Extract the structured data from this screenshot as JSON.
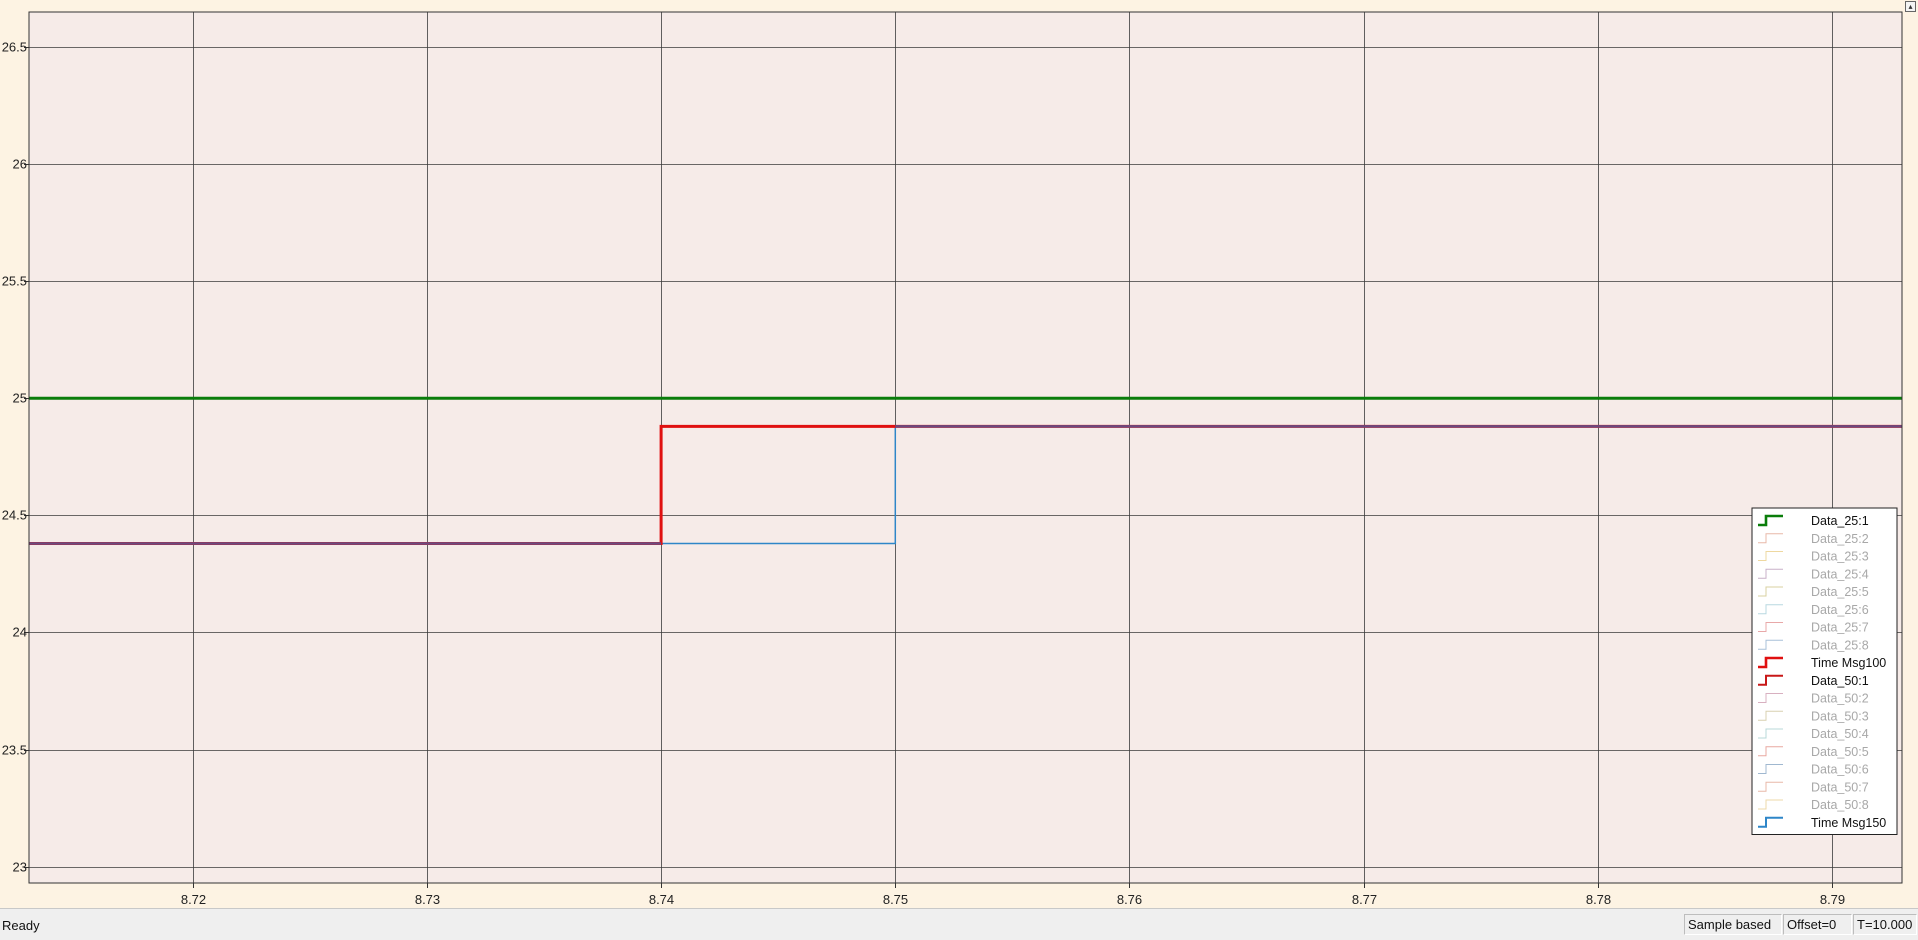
{
  "statusbar": {
    "status": "Ready",
    "mode": "Sample based",
    "offset": "Offset=0",
    "time": "T=10.000"
  },
  "chart_data": {
    "type": "line",
    "xlim": [
      8.713,
      8.793
    ],
    "ylim": [
      22.93,
      26.65
    ],
    "x_ticks": [
      8.72,
      8.73,
      8.74,
      8.75,
      8.76,
      8.77,
      8.78,
      8.79
    ],
    "x_tick_labels": [
      "8.72",
      "8.73",
      "8.74",
      "8.75",
      "8.76",
      "8.77",
      "8.78",
      "8.79"
    ],
    "y_ticks": [
      23,
      23.5,
      24,
      24.5,
      25,
      25.5,
      26,
      26.5
    ],
    "y_tick_labels": [
      "23",
      "23.5",
      "24",
      "24.5",
      "25",
      "25.5",
      "26",
      "26.5"
    ],
    "grid": true,
    "legend_position": "right",
    "plot_background": "#f6ebe8",
    "series": [
      {
        "name": "Data_25:1",
        "color": "#0a7d0a",
        "width": 3,
        "active": true,
        "visible": true,
        "x": [
          8.713,
          8.793
        ],
        "y": [
          25,
          25
        ]
      },
      {
        "name": "Data_25:2",
        "color": "#e8b8a8",
        "active": false
      },
      {
        "name": "Data_25:3",
        "color": "#eed8a0",
        "active": false
      },
      {
        "name": "Data_25:4",
        "color": "#c8b0c8",
        "active": false
      },
      {
        "name": "Data_25:5",
        "color": "#d8d0a0",
        "active": false
      },
      {
        "name": "Data_25:6",
        "color": "#b8d8e0",
        "active": false
      },
      {
        "name": "Data_25:7",
        "color": "#e8a8a8",
        "active": false
      },
      {
        "name": "Data_25:8",
        "color": "#a8c0d8",
        "active": false
      },
      {
        "name": "Time Msg100",
        "color": "#e01010",
        "width": 3,
        "active": true,
        "visible": true,
        "x": [
          8.713,
          8.74,
          8.74,
          8.75,
          8.75,
          8.793
        ],
        "y": [
          24.38,
          24.38,
          24.88,
          24.88,
          24.88,
          24.88
        ]
      },
      {
        "name": "Data_50:1",
        "color": "#c81818",
        "active": true,
        "visible": false
      },
      {
        "name": "Data_50:2",
        "color": "#d8b0c0",
        "active": false
      },
      {
        "name": "Data_50:3",
        "color": "#d8d0b0",
        "active": false
      },
      {
        "name": "Data_50:4",
        "color": "#b8d8d8",
        "active": false
      },
      {
        "name": "Data_50:5",
        "color": "#e8a8a0",
        "active": false
      },
      {
        "name": "Data_50:6",
        "color": "#a0b8d0",
        "active": false
      },
      {
        "name": "Data_50:7",
        "color": "#e8b8a8",
        "active": false
      },
      {
        "name": "Data_50:8",
        "color": "#eed8a8",
        "active": false
      },
      {
        "name": "Time Msg150",
        "color": "#2e86c8",
        "width": 1.5,
        "active": true,
        "visible": true,
        "x": [
          8.713,
          8.75,
          8.75,
          8.793
        ],
        "y": [
          24.38,
          24.38,
          24.88,
          24.88
        ]
      }
    ],
    "overlay_series": {
      "color": "#6a4a80",
      "width": 2.5,
      "x": [
        8.713,
        8.74,
        8.74,
        8.74,
        8.75,
        8.75,
        8.793
      ],
      "y": [
        24.38,
        24.38,
        24.38,
        24.38,
        24.38,
        24.88,
        24.88
      ],
      "segments": [
        [
          [
            8.713,
            24.38
          ],
          [
            8.74,
            24.38
          ]
        ],
        [
          [
            8.75,
            24.88
          ],
          [
            8.793,
            24.88
          ]
        ]
      ]
    }
  }
}
